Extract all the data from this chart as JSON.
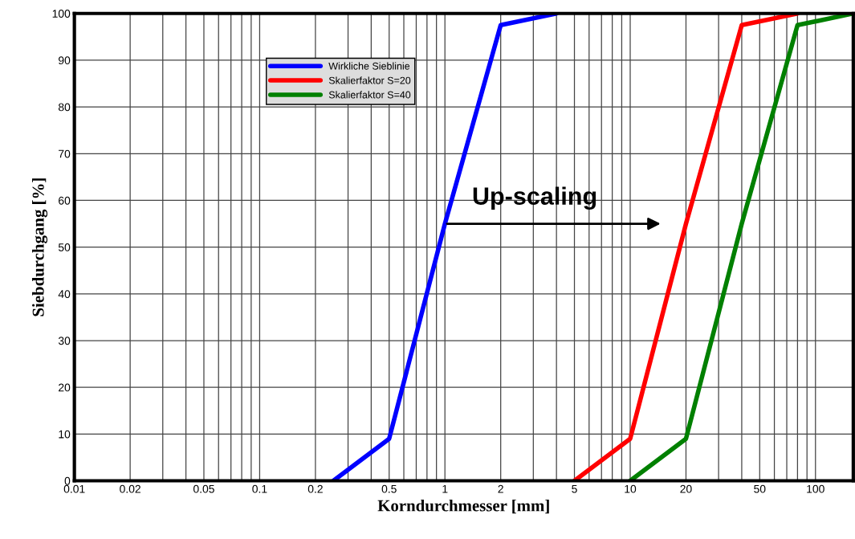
{
  "chart_data": {
    "type": "line",
    "xlabel": "Korndurchmesser [mm]",
    "ylabel": "Siebdurchgang [%]",
    "log": "x",
    "grid": true,
    "legend": "top left",
    "marker": "none",
    "line_style": "solid",
    "xlim": [
      0.01,
      160
    ],
    "ylim": [
      0,
      100
    ],
    "xticks": [
      0.01,
      0.02,
      {
        "value": 0.03,
        "label": null
      },
      {
        "value": 0.04,
        "label": null
      },
      0.05,
      {
        "value": 0.06,
        "label": null
      },
      {
        "value": 0.07,
        "label": null
      },
      {
        "value": 0.08,
        "label": null
      },
      {
        "value": 0.09,
        "label": null
      },
      0.1,
      0.2,
      {
        "value": 0.3,
        "label": null
      },
      {
        "value": 0.4,
        "label": null
      },
      0.5,
      {
        "value": 0.6,
        "label": null
      },
      {
        "value": 0.7,
        "label": null
      },
      {
        "value": 0.8,
        "label": null
      },
      {
        "value": 0.9,
        "label": null
      },
      1,
      2,
      {
        "value": 3,
        "label": null
      },
      {
        "value": 4,
        "label": null
      },
      5,
      {
        "value": 6,
        "label": null
      },
      {
        "value": 7,
        "label": null
      },
      {
        "value": 8,
        "label": null
      },
      {
        "value": 9,
        "label": null
      },
      10,
      20,
      {
        "value": 30,
        "label": null
      },
      {
        "value": 40,
        "label": null
      },
      50,
      {
        "value": 60,
        "label": null
      },
      {
        "value": 70,
        "label": null
      },
      {
        "value": 80,
        "label": null
      },
      {
        "value": 90,
        "label": null
      },
      100
    ],
    "yticks": [
      0,
      10,
      20,
      30,
      40,
      50,
      60,
      70,
      80,
      90,
      100
    ],
    "series": [
      {
        "name": "Wirkliche Sieblinie",
        "color": "#0000ff",
        "x": [
          0.25,
          0.5,
          1,
          2,
          4
        ],
        "values": [
          0,
          9,
          55,
          97.5,
          100
        ]
      },
      {
        "name": "Skalierfaktor S=20",
        "color": "#ff0000",
        "x": [
          5,
          10,
          20,
          40,
          80
        ],
        "values": [
          0,
          9,
          55,
          97.5,
          100
        ]
      },
      {
        "name": "Skalierfaktor S=40",
        "color": "#008000",
        "x": [
          10,
          20,
          40,
          80,
          160
        ],
        "values": [
          0,
          9,
          55,
          97.5,
          100
        ]
      }
    ],
    "annotations": [
      {
        "text": "Up-scaling",
        "x": 1,
        "y": 55
      }
    ]
  }
}
